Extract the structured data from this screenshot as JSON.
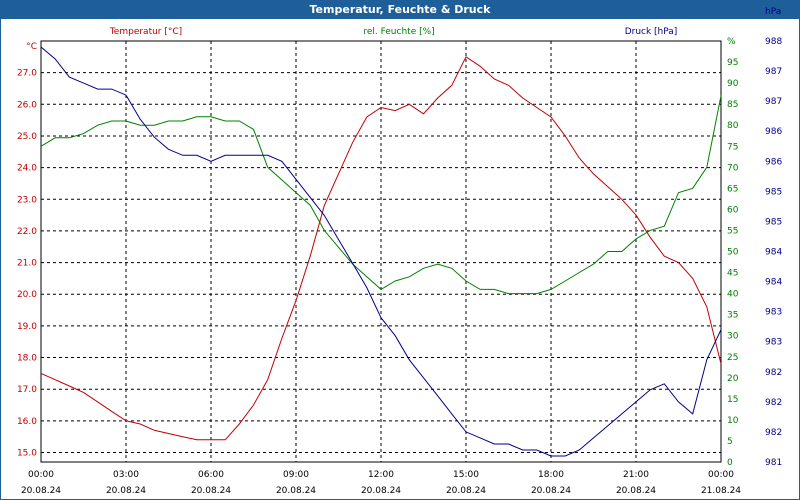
{
  "window": {
    "title": "Temperatur, Feuchte & Druck"
  },
  "colors": {
    "temp": "#c00000",
    "hum": "#008000",
    "press": "#00008b",
    "grid": "#000000",
    "titlebar": "#1f5f99"
  },
  "chart_data": {
    "type": "line",
    "title": "Temperatur, Feuchte & Druck",
    "grid": true,
    "axes": {
      "left": {
        "unit": "°C",
        "min": 14.7,
        "max": 28.0,
        "ticks": [
          "15.0",
          "16.0",
          "17.0",
          "18.0",
          "19.0",
          "20.0",
          "21.0",
          "22.0",
          "23.0",
          "24.0",
          "25.0",
          "26.0",
          "27.0"
        ],
        "tick_values": [
          15,
          16,
          17,
          18,
          19,
          20,
          21,
          22,
          23,
          24,
          25,
          26,
          27
        ]
      },
      "right1": {
        "unit": "%",
        "min": 0,
        "max": 100,
        "ticks": [
          "0",
          "5",
          "10",
          "15",
          "20",
          "25",
          "30",
          "35",
          "40",
          "45",
          "50",
          "55",
          "60",
          "65",
          "70",
          "75",
          "80",
          "85",
          "90",
          "95",
          "%"
        ],
        "tick_values": [
          0,
          5,
          10,
          15,
          20,
          25,
          30,
          35,
          40,
          45,
          50,
          55,
          60,
          65,
          70,
          75,
          80,
          85,
          90,
          95,
          100
        ]
      },
      "right2": {
        "unit": "hPa",
        "min": 981,
        "max": 988,
        "ticks": [
          "981",
          "982",
          "982",
          "982",
          "983",
          "983",
          "984",
          "984",
          "985",
          "985",
          "986",
          "986",
          "987",
          "987",
          "988",
          "hPa"
        ],
        "tick_values": [
          981,
          981.5,
          982,
          982.5,
          983,
          983.5,
          984,
          984.5,
          985,
          985.5,
          986,
          986.5,
          987,
          987.5,
          988,
          988.5
        ]
      }
    },
    "x": {
      "time_ticks": [
        "00:00",
        "03:00",
        "06:00",
        "09:00",
        "12:00",
        "15:00",
        "18:00",
        "21:00",
        "00:00"
      ],
      "date_ticks": [
        "20.08.24",
        "20.08.24",
        "20.08.24",
        "20.08.24",
        "20.08.24",
        "20.08.24",
        "20.08.24",
        "20.08.24",
        "21.08.24"
      ],
      "hours_range": [
        0,
        24
      ]
    },
    "series": [
      {
        "name": "Temperatur [°C]",
        "color": "#c00000",
        "axis": "left",
        "x": [
          0,
          0.5,
          1,
          1.5,
          2,
          2.5,
          3,
          3.5,
          4,
          4.5,
          5,
          5.5,
          6,
          6.5,
          7,
          7.5,
          8,
          8.5,
          9,
          9.5,
          10,
          10.5,
          11,
          11.5,
          12,
          12.5,
          13,
          13.5,
          14,
          14.5,
          15,
          15.5,
          16,
          16.5,
          17,
          17.5,
          18,
          18.5,
          19,
          19.5,
          20,
          20.5,
          21,
          21.5,
          22,
          22.5,
          23,
          23.5,
          24
        ],
        "values": [
          17.5,
          17.3,
          17.1,
          16.9,
          16.6,
          16.3,
          16.0,
          15.9,
          15.7,
          15.6,
          15.5,
          15.4,
          15.4,
          15.4,
          15.9,
          16.5,
          17.3,
          18.6,
          19.8,
          21.2,
          22.8,
          23.8,
          24.8,
          25.6,
          25.9,
          25.8,
          26.0,
          25.7,
          26.2,
          26.6,
          27.5,
          27.2,
          26.8,
          26.6,
          26.2,
          25.9,
          25.6,
          25.0,
          24.3,
          23.8,
          23.4,
          23.0,
          22.5,
          21.8,
          21.2,
          21.0,
          20.5,
          19.6,
          17.8
        ]
      },
      {
        "name": "rel. Feuchte [%]",
        "color": "#008000",
        "axis": "right1",
        "x": [
          0,
          0.5,
          1,
          1.5,
          2,
          2.5,
          3,
          3.5,
          4,
          4.5,
          5,
          5.5,
          6,
          6.5,
          7,
          7.5,
          8,
          8.5,
          9,
          9.5,
          10,
          10.5,
          11,
          11.5,
          12,
          12.5,
          13,
          13.5,
          14,
          14.5,
          15,
          15.5,
          16,
          16.5,
          17,
          17.5,
          18,
          18.5,
          19,
          19.5,
          20,
          20.5,
          21,
          21.5,
          22,
          22.5,
          23,
          23.5,
          24
        ],
        "values": [
          75,
          77,
          77,
          78,
          80,
          81,
          81,
          80,
          80,
          81,
          81,
          82,
          82,
          81,
          81,
          79,
          70,
          67,
          64,
          61,
          55,
          51,
          47,
          44,
          41,
          43,
          44,
          46,
          47,
          46,
          43,
          41,
          41,
          40,
          40,
          40,
          41,
          43,
          45,
          47,
          50,
          50,
          53,
          55,
          56,
          64,
          65,
          70,
          87
        ]
      },
      {
        "name": "Druck [hPa]",
        "color": "#00008b",
        "axis": "right2",
        "x": [
          0,
          0.5,
          1,
          1.5,
          2,
          2.5,
          3,
          3.5,
          4,
          4.5,
          5,
          5.5,
          6,
          6.5,
          7,
          7.5,
          8,
          8.5,
          9,
          9.5,
          10,
          10.5,
          11,
          11.5,
          12,
          12.5,
          13,
          13.5,
          14,
          14.5,
          15,
          15.5,
          16,
          16.5,
          17,
          17.5,
          18,
          18.5,
          19,
          19.5,
          20,
          20.5,
          21,
          21.5,
          22,
          22.5,
          23,
          23.5,
          24
        ],
        "values": [
          987.9,
          987.7,
          987.4,
          987.3,
          987.2,
          987.2,
          987.1,
          986.7,
          986.4,
          986.2,
          986.1,
          986.1,
          986.0,
          986.1,
          986.1,
          986.1,
          986.1,
          986.0,
          985.7,
          985.4,
          985.1,
          984.7,
          984.3,
          983.9,
          983.4,
          983.1,
          982.7,
          982.4,
          982.1,
          981.8,
          981.5,
          981.4,
          981.3,
          981.3,
          981.2,
          981.2,
          981.1,
          981.1,
          981.2,
          981.4,
          981.6,
          981.8,
          982.0,
          982.2,
          982.3,
          982.0,
          981.8,
          982.7,
          983.2
        ]
      }
    ]
  }
}
